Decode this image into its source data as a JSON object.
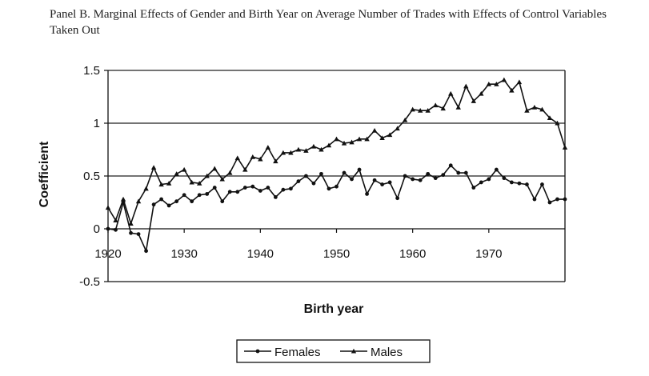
{
  "chart_data": {
    "type": "line",
    "title": "Panel B.  Marginal Effects of Gender and Birth Year on Average Number of Trades with Effects of Control Variables Taken Out",
    "xlabel": "Birth year",
    "ylabel": "Coefficient",
    "xlim": [
      1920,
      1980
    ],
    "ylim": [
      -0.5,
      1.5
    ],
    "x_ticks": [
      "1920",
      "1930",
      "1940",
      "1950",
      "1960",
      "1970"
    ],
    "y_ticks": [
      "1.5",
      "1",
      "0.5",
      "0",
      "-0.5"
    ],
    "gridlines_y": [
      0.5,
      1.0,
      1.5
    ],
    "legend_position": "bottom",
    "x": [
      1920,
      1921,
      1922,
      1923,
      1924,
      1925,
      1926,
      1927,
      1928,
      1929,
      1930,
      1931,
      1932,
      1933,
      1934,
      1935,
      1936,
      1937,
      1938,
      1939,
      1940,
      1941,
      1942,
      1943,
      1944,
      1945,
      1946,
      1947,
      1948,
      1949,
      1950,
      1951,
      1952,
      1953,
      1954,
      1955,
      1956,
      1957,
      1958,
      1959,
      1960,
      1961,
      1962,
      1963,
      1964,
      1965,
      1966,
      1967,
      1968,
      1969,
      1970,
      1971,
      1972,
      1973,
      1974,
      1975,
      1976,
      1977,
      1978,
      1979,
      1980
    ],
    "series": [
      {
        "name": "Females",
        "marker": "circle",
        "values": [
          0.0,
          -0.01,
          0.25,
          -0.04,
          -0.05,
          -0.21,
          0.23,
          0.28,
          0.22,
          0.26,
          0.32,
          0.26,
          0.32,
          0.33,
          0.39,
          0.26,
          0.35,
          0.35,
          0.39,
          0.4,
          0.36,
          0.39,
          0.3,
          0.37,
          0.38,
          0.45,
          0.5,
          0.43,
          0.52,
          0.38,
          0.4,
          0.53,
          0.47,
          0.56,
          0.33,
          0.46,
          0.42,
          0.44,
          0.29,
          0.5,
          0.47,
          0.46,
          0.52,
          0.48,
          0.51,
          0.6,
          0.53,
          0.53,
          0.39,
          0.44,
          0.47,
          0.56,
          0.48,
          0.44,
          0.43,
          0.42,
          0.28,
          0.42,
          0.25,
          0.28,
          0.28
        ]
      },
      {
        "name": "Males",
        "marker": "triangle",
        "values": [
          0.2,
          0.08,
          0.28,
          0.05,
          0.26,
          0.38,
          0.58,
          0.42,
          0.43,
          0.52,
          0.56,
          0.44,
          0.43,
          0.5,
          0.57,
          0.47,
          0.53,
          0.67,
          0.56,
          0.68,
          0.66,
          0.77,
          0.64,
          0.72,
          0.72,
          0.75,
          0.74,
          0.78,
          0.75,
          0.79,
          0.85,
          0.81,
          0.82,
          0.85,
          0.85,
          0.93,
          0.86,
          0.89,
          0.95,
          1.03,
          1.13,
          1.12,
          1.12,
          1.17,
          1.14,
          1.28,
          1.15,
          1.35,
          1.21,
          1.28,
          1.37,
          1.37,
          1.41,
          1.31,
          1.39,
          1.12,
          1.15,
          1.13,
          1.05,
          1.0,
          0.77
        ]
      }
    ]
  },
  "colors": {
    "line": "#111111",
    "grid": "#222222",
    "background": "#ffffff"
  }
}
